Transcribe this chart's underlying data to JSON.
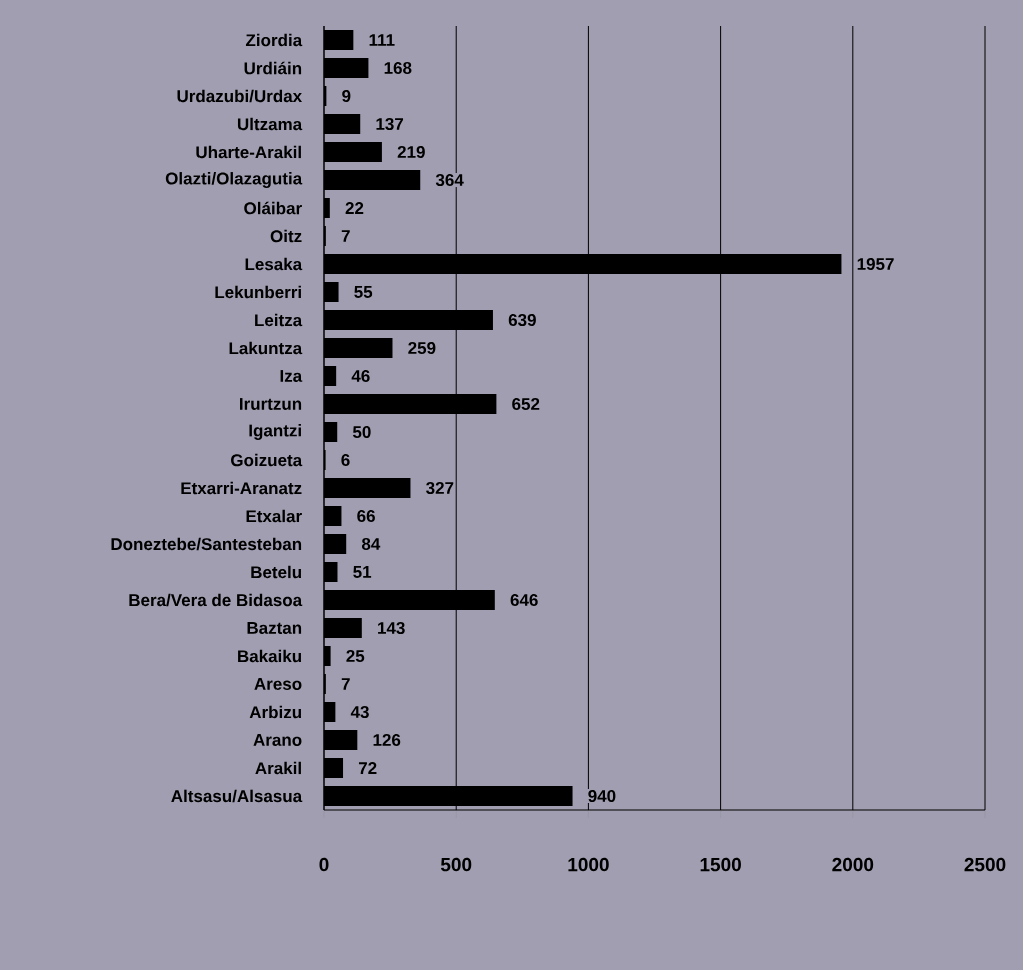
{
  "chart_data": {
    "type": "bar",
    "orientation": "horizontal",
    "categories": [
      "Ziordia",
      "Urdiáin",
      "Urdazubi/Urdax",
      "Ultzama",
      "Uharte-Arakil",
      "Olazti/Olazagutia",
      "Oláibar",
      "Oitz",
      "Lesaka",
      "Lekunberri",
      "Leitza",
      "Lakuntza",
      "Iza",
      "Irurtzun",
      "Igantzi",
      "Goizueta",
      "Etxarri-Aranatz",
      "Etxalar",
      "Doneztebe/Santesteban",
      "Betelu",
      "Bera/Vera de Bidasoa",
      "Baztan",
      "Bakaiku",
      "Areso",
      "Arbizu",
      "Arano",
      "Arakil",
      "Altsasu/Alsasua"
    ],
    "values": [
      111,
      168,
      9,
      137,
      219,
      364,
      22,
      7,
      1957,
      55,
      639,
      259,
      46,
      652,
      50,
      6,
      327,
      66,
      84,
      51,
      646,
      143,
      25,
      7,
      43,
      126,
      72,
      940
    ],
    "color": "#000000",
    "xlim": [
      0,
      2500
    ],
    "xticks": [
      0,
      500,
      1000,
      1500,
      2000,
      2500
    ],
    "grid": "x",
    "data_labels": true
  }
}
